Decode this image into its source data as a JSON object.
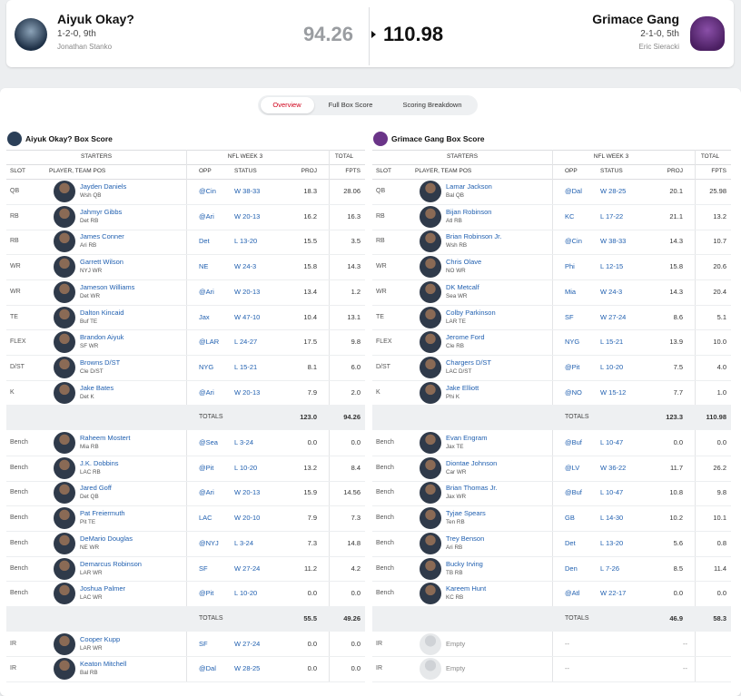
{
  "matchup": {
    "home": {
      "name": "Aiyuk Okay?",
      "record": "1-2-0, 9th",
      "owner": "Jonathan Stanko",
      "score": "94.26"
    },
    "away": {
      "name": "Grimace Gang",
      "record": "2-1-0, 5th",
      "owner": "Eric Sieracki",
      "score": "110.98"
    }
  },
  "tabs": [
    "Overview",
    "Full Box Score",
    "Scoring Breakdown"
  ],
  "box_scores": [
    {
      "title": "Aiyuk Okay? Box Score",
      "header": {
        "starters": "STARTERS",
        "week": "NFL WEEK 3",
        "total": "TOTAL",
        "slot": "SLOT",
        "player": "PLAYER, TEAM POS",
        "opp": "OPP",
        "status": "STATUS",
        "proj": "PROJ",
        "fpts": "FPTS"
      },
      "starters": [
        {
          "slot": "QB",
          "name": "Jayden Daniels",
          "team_pos": "Wsh QB",
          "opp": "@Cin",
          "status": "W 38-33",
          "proj": "18.3",
          "fpts": "28.06"
        },
        {
          "slot": "RB",
          "name": "Jahmyr Gibbs",
          "team_pos": "Det RB",
          "opp": "@Ari",
          "status": "W 20-13",
          "proj": "16.2",
          "fpts": "16.3"
        },
        {
          "slot": "RB",
          "name": "James Conner",
          "team_pos": "Ari RB",
          "opp": "Det",
          "status": "L 13-20",
          "proj": "15.5",
          "fpts": "3.5"
        },
        {
          "slot": "WR",
          "name": "Garrett Wilson",
          "team_pos": "NYJ WR",
          "opp": "NE",
          "status": "W 24-3",
          "proj": "15.8",
          "fpts": "14.3"
        },
        {
          "slot": "WR",
          "name": "Jameson Williams",
          "team_pos": "Det WR",
          "opp": "@Ari",
          "status": "W 20-13",
          "proj": "13.4",
          "fpts": "1.2"
        },
        {
          "slot": "TE",
          "name": "Dalton Kincaid",
          "team_pos": "Buf TE",
          "opp": "Jax",
          "status": "W 47-10",
          "proj": "10.4",
          "fpts": "13.1"
        },
        {
          "slot": "FLEX",
          "name": "Brandon Aiyuk",
          "team_pos": "SF WR",
          "opp": "@LAR",
          "status": "L 24-27",
          "proj": "17.5",
          "fpts": "9.8"
        },
        {
          "slot": "D/ST",
          "name": "Browns D/ST",
          "team_pos": "Cle D/ST",
          "opp": "NYG",
          "status": "L 15-21",
          "proj": "8.1",
          "fpts": "6.0"
        },
        {
          "slot": "K",
          "name": "Jake Bates",
          "team_pos": "Det K",
          "opp": "@Ari",
          "status": "W 20-13",
          "proj": "7.9",
          "fpts": "2.0"
        }
      ],
      "starters_totals": {
        "label": "TOTALS",
        "proj": "123.0",
        "fpts": "94.26"
      },
      "bench": [
        {
          "slot": "Bench",
          "name": "Raheem Mostert",
          "team_pos": "Mia RB",
          "opp": "@Sea",
          "status": "L 3-24",
          "proj": "0.0",
          "fpts": "0.0"
        },
        {
          "slot": "Bench",
          "name": "J.K. Dobbins",
          "team_pos": "LAC RB",
          "opp": "@Pit",
          "status": "L 10-20",
          "proj": "13.2",
          "fpts": "8.4"
        },
        {
          "slot": "Bench",
          "name": "Jared Goff",
          "team_pos": "Det QB",
          "opp": "@Ari",
          "status": "W 20-13",
          "proj": "15.9",
          "fpts": "14.56"
        },
        {
          "slot": "Bench",
          "name": "Pat Freiermuth",
          "team_pos": "Pit TE",
          "opp": "LAC",
          "status": "W 20-10",
          "proj": "7.9",
          "fpts": "7.3"
        },
        {
          "slot": "Bench",
          "name": "DeMario Douglas",
          "team_pos": "NE WR",
          "opp": "@NYJ",
          "status": "L 3-24",
          "proj": "7.3",
          "fpts": "14.8"
        },
        {
          "slot": "Bench",
          "name": "Demarcus Robinson",
          "team_pos": "LAR WR",
          "opp": "SF",
          "status": "W 27-24",
          "proj": "11.2",
          "fpts": "4.2"
        },
        {
          "slot": "Bench",
          "name": "Joshua Palmer",
          "team_pos": "LAC WR",
          "opp": "@Pit",
          "status": "L 10-20",
          "proj": "0.0",
          "fpts": "0.0"
        }
      ],
      "bench_totals": {
        "label": "TOTALS",
        "proj": "55.5",
        "fpts": "49.26"
      },
      "ir": [
        {
          "slot": "IR",
          "name": "Cooper Kupp",
          "team_pos": "LAR WR",
          "opp": "SF",
          "status": "W 27-24",
          "proj": "0.0",
          "fpts": "0.0"
        },
        {
          "slot": "IR",
          "name": "Keaton Mitchell",
          "team_pos": "Bal RB",
          "opp": "@Dal",
          "status": "W 28-25",
          "proj": "0.0",
          "fpts": "0.0"
        }
      ]
    },
    {
      "title": "Grimace Gang Box Score",
      "header": {
        "starters": "STARTERS",
        "week": "NFL WEEK 3",
        "total": "TOTAL",
        "slot": "SLOT",
        "player": "PLAYER, TEAM POS",
        "opp": "OPP",
        "status": "STATUS",
        "proj": "PROJ",
        "fpts": "FPTS"
      },
      "starters": [
        {
          "slot": "QB",
          "name": "Lamar Jackson",
          "team_pos": "Bal QB",
          "opp": "@Dal",
          "status": "W 28-25",
          "proj": "20.1",
          "fpts": "25.98"
        },
        {
          "slot": "RB",
          "name": "Bijan Robinson",
          "team_pos": "Atl RB",
          "opp": "KC",
          "status": "L 17-22",
          "proj": "21.1",
          "fpts": "13.2"
        },
        {
          "slot": "RB",
          "name": "Brian Robinson Jr.",
          "team_pos": "Wsh RB",
          "opp": "@Cin",
          "status": "W 38-33",
          "proj": "14.3",
          "fpts": "10.7"
        },
        {
          "slot": "WR",
          "name": "Chris Olave",
          "team_pos": "NO WR",
          "opp": "Phi",
          "status": "L 12-15",
          "proj": "15.8",
          "fpts": "20.6"
        },
        {
          "slot": "WR",
          "name": "DK Metcalf",
          "team_pos": "Sea WR",
          "opp": "Mia",
          "status": "W 24-3",
          "proj": "14.3",
          "fpts": "20.4"
        },
        {
          "slot": "TE",
          "name": "Colby Parkinson",
          "team_pos": "LAR TE",
          "opp": "SF",
          "status": "W 27-24",
          "proj": "8.6",
          "fpts": "5.1"
        },
        {
          "slot": "FLEX",
          "name": "Jerome Ford",
          "team_pos": "Cle RB",
          "opp": "NYG",
          "status": "L 15-21",
          "proj": "13.9",
          "fpts": "10.0"
        },
        {
          "slot": "D/ST",
          "name": "Chargers D/ST",
          "team_pos": "LAC D/ST",
          "opp": "@Pit",
          "status": "L 10-20",
          "proj": "7.5",
          "fpts": "4.0"
        },
        {
          "slot": "K",
          "name": "Jake Elliott",
          "team_pos": "Phi K",
          "opp": "@NO",
          "status": "W 15-12",
          "proj": "7.7",
          "fpts": "1.0"
        }
      ],
      "starters_totals": {
        "label": "TOTALS",
        "proj": "123.3",
        "fpts": "110.98"
      },
      "bench": [
        {
          "slot": "Bench",
          "name": "Evan Engram",
          "team_pos": "Jax TE",
          "opp": "@Buf",
          "status": "L 10-47",
          "proj": "0.0",
          "fpts": "0.0"
        },
        {
          "slot": "Bench",
          "name": "Diontae Johnson",
          "team_pos": "Car WR",
          "opp": "@LV",
          "status": "W 36-22",
          "proj": "11.7",
          "fpts": "26.2"
        },
        {
          "slot": "Bench",
          "name": "Brian Thomas Jr.",
          "team_pos": "Jax WR",
          "opp": "@Buf",
          "status": "L 10-47",
          "proj": "10.8",
          "fpts": "9.8"
        },
        {
          "slot": "Bench",
          "name": "Tyjae Spears",
          "team_pos": "Ten RB",
          "opp": "GB",
          "status": "L 14-30",
          "proj": "10.2",
          "fpts": "10.1"
        },
        {
          "slot": "Bench",
          "name": "Trey Benson",
          "team_pos": "Ari RB",
          "opp": "Det",
          "status": "L 13-20",
          "proj": "5.6",
          "fpts": "0.8"
        },
        {
          "slot": "Bench",
          "name": "Bucky Irving",
          "team_pos": "TB RB",
          "opp": "Den",
          "status": "L 7-26",
          "proj": "8.5",
          "fpts": "11.4"
        },
        {
          "slot": "Bench",
          "name": "Kareem Hunt",
          "team_pos": "KC RB",
          "opp": "@Atl",
          "status": "W 22-17",
          "proj": "0.0",
          "fpts": "0.0"
        }
      ],
      "bench_totals": {
        "label": "TOTALS",
        "proj": "46.9",
        "fpts": "58.3"
      },
      "ir": [
        {
          "slot": "IR",
          "name": "Empty",
          "opp": "--",
          "proj": "--"
        },
        {
          "slot": "IR",
          "name": "Empty",
          "opp": "--",
          "proj": "--"
        }
      ]
    }
  ]
}
